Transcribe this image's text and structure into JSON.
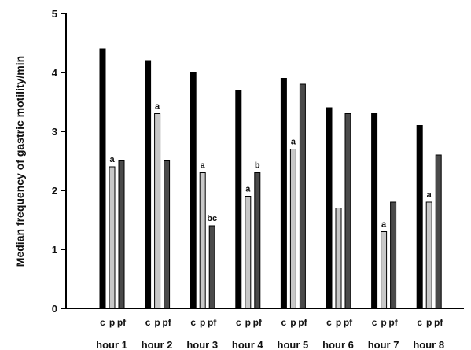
{
  "chart_data": {
    "type": "bar",
    "ylabel": "Median frequency of gastric motility/min",
    "ylim": [
      0,
      5
    ],
    "yticks": [
      0,
      1,
      2,
      3,
      4,
      5
    ],
    "grid": false,
    "legend": "none",
    "categories": [
      "hour 1",
      "hour 2",
      "hour 3",
      "hour 4",
      "hour 5",
      "hour 6",
      "hour 7",
      "hour 8"
    ],
    "series": [
      {
        "name": "c",
        "color": "#000000",
        "values": [
          4.4,
          4.2,
          4.0,
          3.7,
          3.9,
          3.4,
          3.3,
          3.1
        ]
      },
      {
        "name": "p",
        "color": "#c8c8c8",
        "values": [
          2.4,
          3.3,
          2.3,
          1.9,
          2.7,
          1.7,
          1.3,
          1.8
        ]
      },
      {
        "name": "pf",
        "color": "#4a4a4a",
        "values": [
          2.5,
          2.5,
          1.4,
          2.3,
          3.8,
          3.3,
          1.8,
          2.6
        ]
      }
    ],
    "annotations": [
      {
        "category": 0,
        "series": 1,
        "text": "a"
      },
      {
        "category": 1,
        "series": 1,
        "text": "a"
      },
      {
        "category": 2,
        "series": 1,
        "text": "a"
      },
      {
        "category": 2,
        "series": 2,
        "text": "bc"
      },
      {
        "category": 3,
        "series": 1,
        "text": "a"
      },
      {
        "category": 3,
        "series": 2,
        "text": "b"
      },
      {
        "category": 4,
        "series": 1,
        "text": "a"
      },
      {
        "category": 6,
        "series": 1,
        "text": "a"
      },
      {
        "category": 7,
        "series": 1,
        "text": "a"
      }
    ]
  }
}
